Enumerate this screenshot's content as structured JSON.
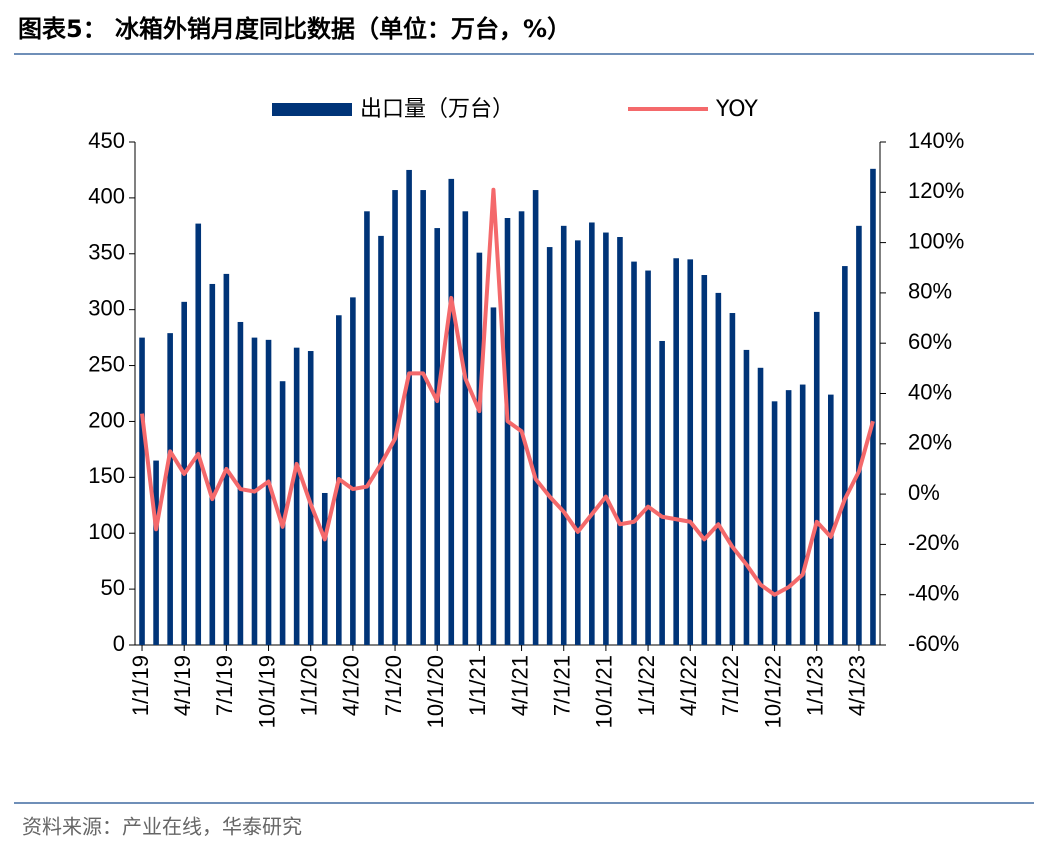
{
  "chart_data": {
    "type": "bar-line",
    "title": "图表5： 冰箱外销月度同比数据（单位：万台，%）",
    "source": "资料来源：产业在线，华泰研究",
    "categories": [
      "1/1/19",
      null,
      null,
      "4/1/19",
      null,
      null,
      "7/1/19",
      null,
      null,
      "10/1/19",
      null,
      null,
      "1/1/20",
      null,
      null,
      "4/1/20",
      null,
      null,
      "7/1/20",
      null,
      null,
      "10/1/20",
      null,
      null,
      "1/1/21",
      null,
      null,
      "4/1/21",
      null,
      null,
      "7/1/21",
      null,
      null,
      "10/1/21",
      null,
      null,
      "1/1/22",
      null,
      null,
      "4/1/22",
      null,
      null,
      "7/1/22",
      null,
      null,
      "10/1/22",
      null,
      null,
      "1/1/23",
      null,
      null,
      "4/1/23",
      null
    ],
    "series": [
      {
        "name": "出口量（万台）",
        "type": "bar",
        "color": "#003478",
        "values": [
          275,
          165,
          279,
          307,
          377,
          323,
          332,
          289,
          275,
          273,
          236,
          266,
          263,
          136,
          295,
          311,
          388,
          366,
          407,
          425,
          407,
          373,
          417,
          388,
          351,
          302,
          382,
          388,
          407,
          356,
          375,
          362,
          378,
          369,
          365,
          343,
          335,
          272,
          346,
          345,
          331,
          315,
          297,
          264,
          248,
          218,
          228,
          233,
          298,
          224,
          339,
          375,
          426
        ]
      },
      {
        "name": "YOY",
        "type": "line",
        "axis": "y2",
        "color": "#f4696b",
        "values": [
          32,
          -14,
          17,
          8,
          16,
          -2,
          10,
          2,
          1,
          5,
          -13,
          12,
          -4,
          -18,
          6,
          2,
          3,
          12,
          22,
          48,
          48,
          37,
          78,
          46,
          33,
          121,
          29,
          25,
          6,
          -1,
          -7,
          -15,
          -8,
          -1,
          -12,
          -11,
          -5,
          -9,
          -10,
          -11,
          -18,
          -12,
          -21,
          -28,
          -36,
          -40,
          -37,
          -32,
          -11,
          -17,
          -2,
          9,
          29
        ]
      }
    ],
    "ylim": [
      0,
      450
    ],
    "yticks": [
      0,
      50,
      100,
      150,
      200,
      250,
      300,
      350,
      400,
      450
    ],
    "y2lim": [
      -60,
      140
    ],
    "y2ticks": [
      {
        "value": -60,
        "label": "-60%"
      },
      {
        "value": -40,
        "label": "-40%"
      },
      {
        "value": -20,
        "label": "-20%"
      },
      {
        "value": 0,
        "label": "0%"
      },
      {
        "value": 20,
        "label": "20%"
      },
      {
        "value": 40,
        "label": "40%"
      },
      {
        "value": 60,
        "label": "60%"
      },
      {
        "value": 80,
        "label": "80%"
      },
      {
        "value": 100,
        "label": "100%"
      },
      {
        "value": 120,
        "label": "120%"
      },
      {
        "value": 140,
        "label": "140%"
      }
    ],
    "legend": "top"
  }
}
